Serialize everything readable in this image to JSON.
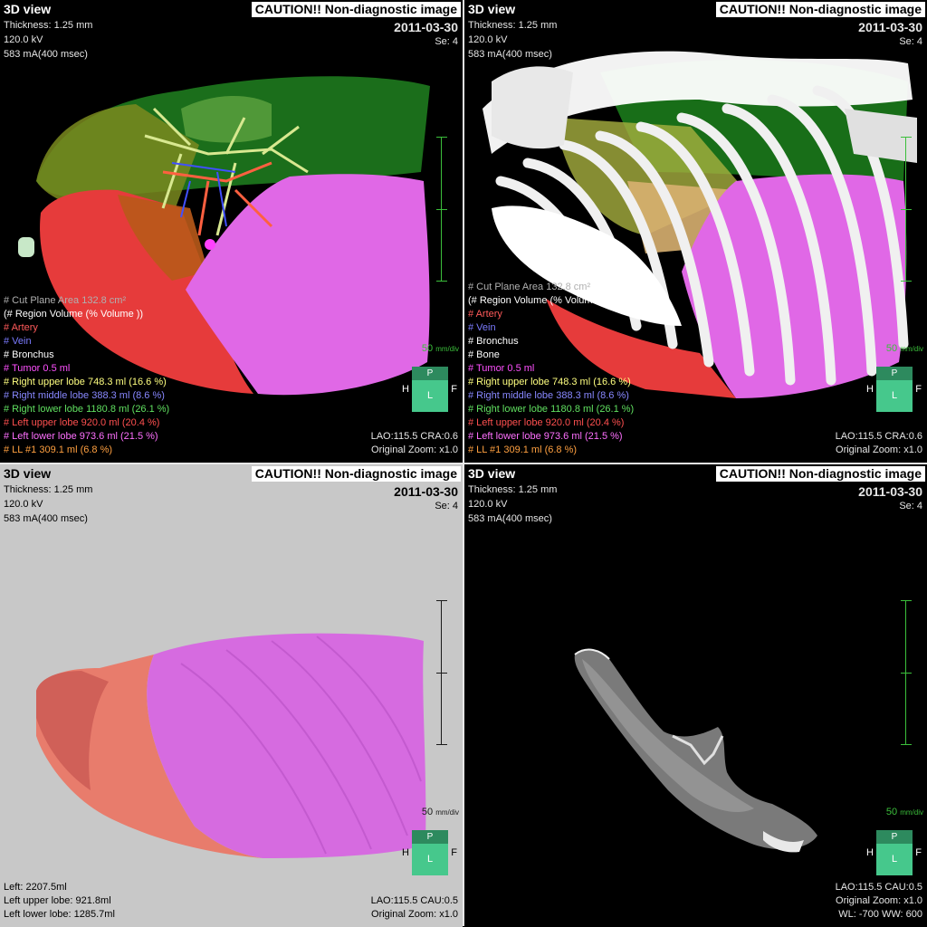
{
  "common": {
    "title": "3D view",
    "caution": "CAUTION!! Non-diagnostic image",
    "date": "2011-03-30",
    "series": "Se: 4",
    "thickness": "Thickness: 1.25 mm",
    "kv": "120.0 kV",
    "ma": "583 mA(400 msec)",
    "scale_label": "50",
    "scale_unit": "mm/div",
    "orient": {
      "p": "P",
      "l": "L",
      "h": "H",
      "f": "F"
    }
  },
  "tl": {
    "legend": [
      {
        "text": "# Cut Plane Area 132.8 cm²",
        "color": "#b0b0b0"
      },
      {
        "text": "(# Region Volume (% Volume ))",
        "color": "#ffffff"
      },
      {
        "text": "# Artery",
        "color": "#ff5a5a"
      },
      {
        "text": "# Vein",
        "color": "#7b7bff"
      },
      {
        "text": "# Bronchus",
        "color": "#ffffff"
      },
      {
        "text": "# Tumor 0.5 ml",
        "color": "#ff50ff"
      },
      {
        "text": "# Right upper lobe 748.3 ml (16.6 %)",
        "color": "#ffff80"
      },
      {
        "text": "# Right middle lobe 388.3 ml (8.6 %)",
        "color": "#8888ff"
      },
      {
        "text": "# Right lower lobe 1180.8 ml (26.1 %)",
        "color": "#60e060"
      },
      {
        "text": "# Left upper lobe 920.0 ml (20.4 %)",
        "color": "#ff5050"
      },
      {
        "text": "# Left lower lobe 973.6 ml (21.5 %)",
        "color": "#ff70ff"
      },
      {
        "text": "# LL #1 309.1 ml (6.8 %)",
        "color": "#ffa040"
      }
    ],
    "view": "LAO:115.5 CRA:0.6",
    "zoom": "Original Zoom: x1.0"
  },
  "tr": {
    "legend": [
      {
        "text": "# Cut Plane Area 132.8 cm²",
        "color": "#b0b0b0"
      },
      {
        "text": "(# Region Volume (% Volume ))",
        "color": "#ffffff"
      },
      {
        "text": "# Artery",
        "color": "#ff5a5a"
      },
      {
        "text": "# Vein",
        "color": "#7b7bff"
      },
      {
        "text": "# Bronchus",
        "color": "#ffffff"
      },
      {
        "text": "# Bone",
        "color": "#ffffff"
      },
      {
        "text": "# Tumor 0.5 ml",
        "color": "#ff50ff"
      },
      {
        "text": "# Right upper lobe 748.3 ml (16.6 %)",
        "color": "#ffff80"
      },
      {
        "text": "# Right middle lobe 388.3 ml (8.6 %)",
        "color": "#8888ff"
      },
      {
        "text": "# Right lower lobe 1180.8 ml (26.1 %)",
        "color": "#60e060"
      },
      {
        "text": "# Left upper lobe 920.0 ml (20.4 %)",
        "color": "#ff5050"
      },
      {
        "text": "# Left lower lobe 973.6 ml (21.5 %)",
        "color": "#ff70ff"
      },
      {
        "text": "# LL #1 309.1 ml (6.8 %)",
        "color": "#ffa040"
      }
    ],
    "view": "LAO:115.5 CRA:0.6",
    "zoom": "Original Zoom: x1.0"
  },
  "bl": {
    "lines": [
      "Left: 2207.5ml",
      "Left upper lobe: 921.8ml",
      "Left lower lobe: 1285.7ml"
    ],
    "view": "LAO:115.5 CAU:0.5",
    "zoom": "Original Zoom: x1.0"
  },
  "br": {
    "view": "LAO:115.5 CAU:0.5",
    "zoom": "Original Zoom: x1.0",
    "window": "WL: -700  WW: 600"
  }
}
